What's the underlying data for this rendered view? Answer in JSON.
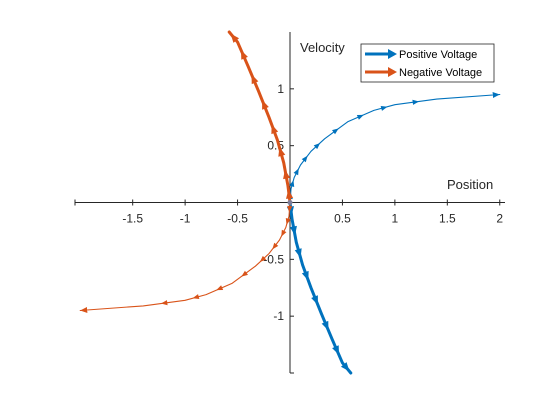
{
  "chart_data": {
    "type": "line",
    "title": "",
    "xlabel": "Position",
    "ylabel": "Velocity",
    "xlim": [
      -2.05,
      2.05
    ],
    "ylim": [
      -1.5,
      1.5
    ],
    "x_ticks": [
      -1.5,
      -1,
      -0.5,
      0.5,
      1,
      1.5,
      2
    ],
    "x_tick_labels": [
      "-1.5",
      "-1",
      "-0.5",
      "0.5",
      "1",
      "1.5",
      "2"
    ],
    "y_ticks": [
      -1,
      -0.5,
      0.5,
      1
    ],
    "y_tick_labels": [
      "-1",
      "-0.5",
      "0.5",
      "1"
    ],
    "grid": false,
    "legend_position": "top-right",
    "series": [
      {
        "name": "Positive Voltage",
        "color": "#0072BD",
        "trajectories": [
          {
            "weight": "thin",
            "points": [
              [
                0,
                0
              ],
              [
                0.01,
                0.12
              ],
              [
                0.04,
                0.22
              ],
              [
                0.1,
                0.33
              ],
              [
                0.2,
                0.45
              ],
              [
                0.33,
                0.56
              ],
              [
                0.55,
                0.71
              ],
              [
                0.8,
                0.81
              ],
              [
                1.0,
                0.86
              ],
              [
                1.4,
                0.91
              ],
              [
                2.0,
                0.95
              ]
            ]
          },
          {
            "weight": "thick",
            "points": [
              [
                0,
                0
              ],
              [
                0.02,
                -0.15
              ],
              [
                0.06,
                -0.35
              ],
              [
                0.12,
                -0.55
              ],
              [
                0.2,
                -0.75
              ],
              [
                0.3,
                -0.98
              ],
              [
                0.4,
                -1.2
              ],
              [
                0.5,
                -1.41
              ],
              [
                0.58,
                -1.5
              ]
            ]
          }
        ]
      },
      {
        "name": "Negative Voltage",
        "color": "#D95319",
        "trajectories": [
          {
            "weight": "thin",
            "points": [
              [
                0,
                0
              ],
              [
                -0.01,
                -0.12
              ],
              [
                -0.04,
                -0.22
              ],
              [
                -0.1,
                -0.33
              ],
              [
                -0.2,
                -0.45
              ],
              [
                -0.33,
                -0.56
              ],
              [
                -0.55,
                -0.71
              ],
              [
                -0.8,
                -0.81
              ],
              [
                -1.0,
                -0.86
              ],
              [
                -1.4,
                -0.91
              ],
              [
                -2.0,
                -0.95
              ]
            ]
          },
          {
            "weight": "thick",
            "points": [
              [
                0,
                0
              ],
              [
                -0.02,
                0.15
              ],
              [
                -0.06,
                0.35
              ],
              [
                -0.12,
                0.55
              ],
              [
                -0.2,
                0.75
              ],
              [
                -0.3,
                0.98
              ],
              [
                -0.4,
                1.2
              ],
              [
                -0.5,
                1.41
              ],
              [
                -0.58,
                1.5
              ]
            ]
          }
        ]
      }
    ]
  }
}
